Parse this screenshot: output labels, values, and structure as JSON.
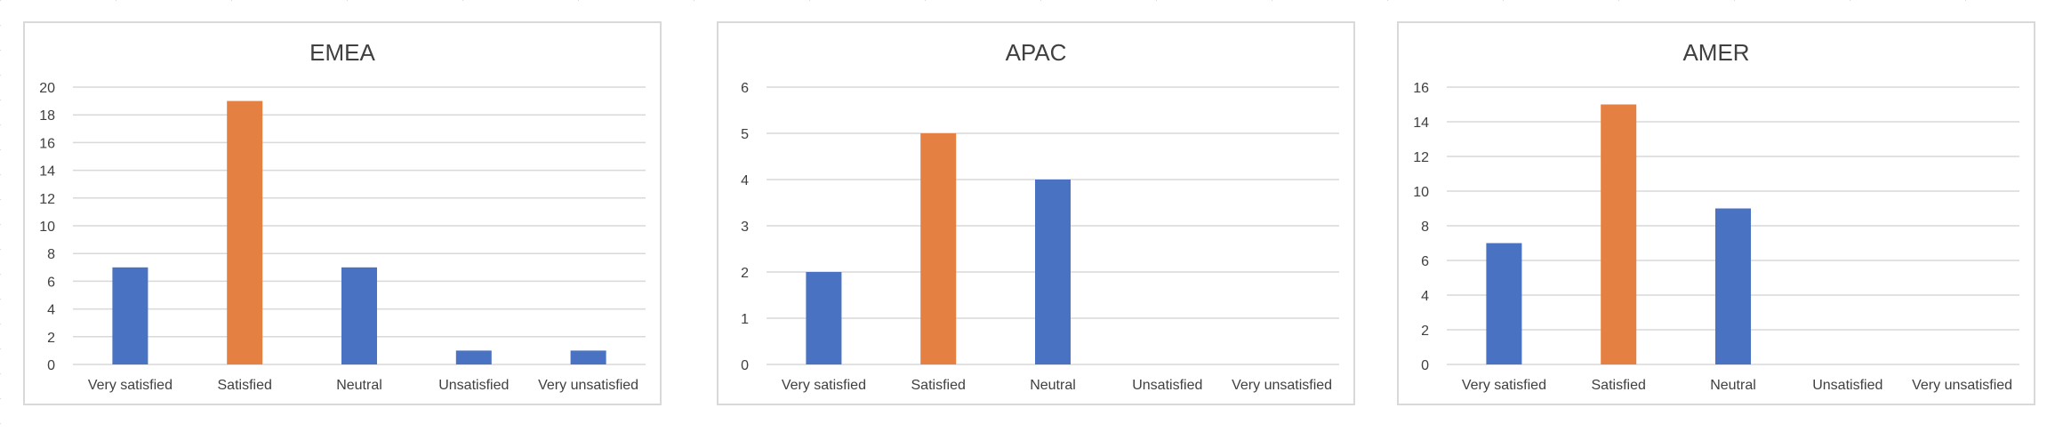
{
  "colors": {
    "default_bar": "#4a72c2",
    "highlight_bar": "#e48142",
    "gridline": "#d9d9d9",
    "axis_text": "#404040"
  },
  "chart_data": [
    {
      "type": "bar",
      "title": "EMEA",
      "categories": [
        "Very satisfied",
        "Satisfied",
        "Neutral",
        "Unsatisfied",
        "Very unsatisfied"
      ],
      "values": [
        7,
        19,
        7,
        1,
        1
      ],
      "highlight_index": 1,
      "ylim": [
        0,
        20
      ],
      "yticks": [
        0,
        2,
        4,
        6,
        8,
        10,
        12,
        14,
        16,
        18,
        20
      ],
      "grid": true,
      "legend": "none"
    },
    {
      "type": "bar",
      "title": "APAC",
      "categories": [
        "Very satisfied",
        "Satisfied",
        "Neutral",
        "Unsatisfied",
        "Very unsatisfied"
      ],
      "values": [
        2,
        5,
        4,
        0,
        0
      ],
      "highlight_index": 1,
      "ylim": [
        0,
        6
      ],
      "yticks": [
        0,
        1,
        2,
        3,
        4,
        5,
        6
      ],
      "grid": true,
      "legend": "none"
    },
    {
      "type": "bar",
      "title": "AMER",
      "categories": [
        "Very satisfied",
        "Satisfied",
        "Neutral",
        "Unsatisfied",
        "Very unsatisfied"
      ],
      "values": [
        7,
        15,
        9,
        0,
        0
      ],
      "highlight_index": 1,
      "ylim": [
        0,
        16
      ],
      "yticks": [
        0,
        2,
        4,
        6,
        8,
        10,
        12,
        14,
        16
      ],
      "grid": true,
      "legend": "none"
    }
  ]
}
